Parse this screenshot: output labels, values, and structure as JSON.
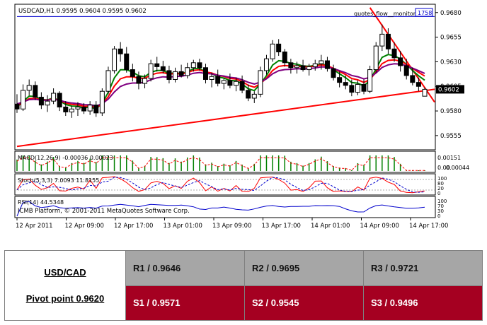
{
  "chart_data": {
    "type": "candlestick",
    "symbol_header": "USDCAD,H1  0.9595 0.9604 0.9595 0.9602",
    "indicator_label": "quotes_flow__monitor",
    "price_axis": {
      "range": [
        0.9542,
        0.9687
      ],
      "ticks": [
        "0.9680",
        "0.9655",
        "0.9630",
        "0.9605",
        "0.9580",
        "0.9555"
      ],
      "current_price": "0.9602",
      "corner_tag": "1758"
    },
    "time_axis": [
      "12 Apr 2011",
      "12 Apr 09:00",
      "12 Apr 17:00",
      "13 Apr 01:00",
      "13 Apr 09:00",
      "13 Apr 17:00",
      "14 Apr 01:00",
      "14 Apr 09:00",
      "14 Apr 17:00"
    ],
    "candles": [
      [
        0.9587,
        0.9597,
        0.9578,
        0.9582
      ],
      [
        0.9582,
        0.9607,
        0.958,
        0.9601
      ],
      [
        0.9601,
        0.9612,
        0.9596,
        0.9606
      ],
      [
        0.9606,
        0.961,
        0.9591,
        0.9594
      ],
      [
        0.9594,
        0.9599,
        0.9582,
        0.9586
      ],
      [
        0.9586,
        0.9596,
        0.9579,
        0.959
      ],
      [
        0.959,
        0.9603,
        0.9587,
        0.9598
      ],
      [
        0.9598,
        0.96,
        0.958,
        0.9584
      ],
      [
        0.9584,
        0.959,
        0.9575,
        0.9579
      ],
      [
        0.9579,
        0.9585,
        0.9573,
        0.9582
      ],
      [
        0.9582,
        0.9589,
        0.9575,
        0.9584
      ],
      [
        0.9584,
        0.9588,
        0.9577,
        0.958
      ],
      [
        0.958,
        0.959,
        0.9576,
        0.9586
      ],
      [
        0.9586,
        0.959,
        0.9574,
        0.9578
      ],
      [
        0.9578,
        0.9603,
        0.9575,
        0.96
      ],
      [
        0.96,
        0.9625,
        0.9597,
        0.9621
      ],
      [
        0.9621,
        0.9646,
        0.9618,
        0.9643
      ],
      [
        0.9643,
        0.965,
        0.963,
        0.9638
      ],
      [
        0.9638,
        0.9645,
        0.9619,
        0.9622
      ],
      [
        0.9622,
        0.9628,
        0.961,
        0.9615
      ],
      [
        0.9615,
        0.962,
        0.9602,
        0.9608
      ],
      [
        0.9608,
        0.9617,
        0.9603,
        0.9613
      ],
      [
        0.9613,
        0.9632,
        0.961,
        0.9628
      ],
      [
        0.9628,
        0.9635,
        0.962,
        0.9625
      ],
      [
        0.9625,
        0.9631,
        0.9618,
        0.9621
      ],
      [
        0.9621,
        0.9626,
        0.9608,
        0.9612
      ],
      [
        0.9612,
        0.9624,
        0.9609,
        0.962
      ],
      [
        0.962,
        0.9627,
        0.9614,
        0.9616
      ],
      [
        0.9616,
        0.9629,
        0.9613,
        0.9624
      ],
      [
        0.9624,
        0.9632,
        0.962,
        0.9629
      ],
      [
        0.9629,
        0.9633,
        0.9621,
        0.9624
      ],
      [
        0.9624,
        0.9628,
        0.9608,
        0.9612
      ],
      [
        0.9612,
        0.9619,
        0.9604,
        0.9615
      ],
      [
        0.9615,
        0.9622,
        0.9605,
        0.9608
      ],
      [
        0.9608,
        0.9613,
        0.9602,
        0.9611
      ],
      [
        0.9611,
        0.9618,
        0.9603,
        0.9606
      ],
      [
        0.9606,
        0.9614,
        0.96,
        0.961
      ],
      [
        0.961,
        0.9616,
        0.9598,
        0.9601
      ],
      [
        0.9601,
        0.9607,
        0.959,
        0.9593
      ],
      [
        0.9593,
        0.96,
        0.9588,
        0.9597
      ],
      [
        0.9597,
        0.9625,
        0.9594,
        0.9621
      ],
      [
        0.9621,
        0.9637,
        0.9617,
        0.9633
      ],
      [
        0.9633,
        0.9652,
        0.963,
        0.9648
      ],
      [
        0.9648,
        0.9653,
        0.9636,
        0.964
      ],
      [
        0.964,
        0.9643,
        0.9625,
        0.9629
      ],
      [
        0.9629,
        0.9633,
        0.9618,
        0.9624
      ],
      [
        0.9624,
        0.963,
        0.9618,
        0.9626
      ],
      [
        0.9626,
        0.9632,
        0.962,
        0.9622
      ],
      [
        0.9622,
        0.9628,
        0.9616,
        0.9625
      ],
      [
        0.9625,
        0.9632,
        0.9621,
        0.9628
      ],
      [
        0.9628,
        0.9637,
        0.9622,
        0.9631
      ],
      [
        0.9631,
        0.9635,
        0.962,
        0.9623
      ],
      [
        0.9623,
        0.9627,
        0.9611,
        0.9614
      ],
      [
        0.9614,
        0.962,
        0.9604,
        0.9609
      ],
      [
        0.9609,
        0.9616,
        0.9602,
        0.9606
      ],
      [
        0.9606,
        0.9612,
        0.9595,
        0.9599
      ],
      [
        0.9599,
        0.9611,
        0.9596,
        0.9607
      ],
      [
        0.9607,
        0.9612,
        0.9597,
        0.96
      ],
      [
        0.96,
        0.9626,
        0.9598,
        0.9622
      ],
      [
        0.9622,
        0.965,
        0.9619,
        0.9646
      ],
      [
        0.9646,
        0.9668,
        0.9641,
        0.9658
      ],
      [
        0.9658,
        0.9664,
        0.9638,
        0.9643
      ],
      [
        0.9643,
        0.965,
        0.963,
        0.9634
      ],
      [
        0.9634,
        0.9641,
        0.962,
        0.9626
      ],
      [
        0.9626,
        0.9633,
        0.9612,
        0.9616
      ],
      [
        0.9616,
        0.9624,
        0.9606,
        0.9609
      ],
      [
        0.9609,
        0.9614,
        0.96,
        0.9605
      ],
      [
        0.9595,
        0.9604,
        0.9595,
        0.9602
      ]
    ],
    "moving_averages": [
      {
        "color": "#008000",
        "start": 0.9585,
        "period": 5
      },
      {
        "color": "#ff0000",
        "start": 0.9586,
        "period": 8
      },
      {
        "color": "#800080",
        "start": 0.9588,
        "period": 13
      }
    ],
    "trendlines": [
      {
        "color": "#ff0000",
        "from": [
          0,
          0.9544
        ],
        "to": [
          70,
          0.9602
        ]
      },
      {
        "color": "#ff0000",
        "from": [
          58,
          0.9685
        ],
        "to": [
          70,
          0.9589
        ]
      },
      {
        "color": "#0000cc",
        "from": [
          0,
          0.9676
        ],
        "to": [
          70,
          0.9676
        ]
      }
    ],
    "subpanels": [
      {
        "name": "MACD",
        "label": "MACD(12,26,9) -0.00036 0.00023",
        "ticks": [
          "0.00151",
          "0.00044",
          "0.00"
        ],
        "bar_color": "#008000"
      },
      {
        "name": "Stoch",
        "label": "Stoch(5,3,3) 7.0093 11.8155",
        "ticks": [
          "100",
          "80",
          "20",
          "0"
        ]
      },
      {
        "name": "RSI",
        "label": "RSI(14) 44.5348",
        "ticks": [
          "100",
          "70",
          "30",
          "0"
        ],
        "watermark": "ICMB Platform, © 2001-2011 MetaQuotes Software Corp."
      }
    ]
  },
  "pivot_table": {
    "symbol": "USD/CAD",
    "pivot": "Pivot point 0.9620",
    "resistances": [
      "R1 / 0.9646",
      "R2 / 0.9695",
      "R3 / 0.9721"
    ],
    "supports": [
      "S1 / 0.9571",
      "S2 / 0.9545",
      "S3 / 0.9496"
    ]
  }
}
